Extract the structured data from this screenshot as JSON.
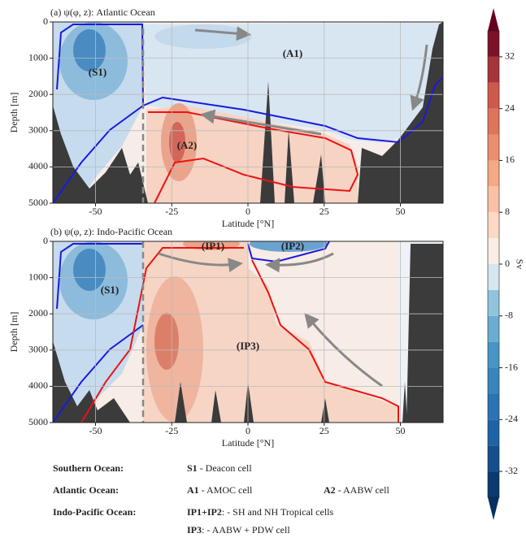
{
  "chart_data": [
    {
      "type": "contour",
      "title": "(a) ψ(φ, z): Atlantic Ocean",
      "xlabel": "Latitude [°N]",
      "ylabel": "Depth [m]",
      "xlim": [
        -64,
        64
      ],
      "ylim": [
        5000,
        0
      ],
      "xticks": [
        -50,
        -25,
        0,
        25,
        50
      ],
      "yticks": [
        0,
        1000,
        2000,
        3000,
        4000,
        5000
      ],
      "grid": true,
      "annotations": [
        "(S1)",
        "(A1)",
        "(A2)"
      ]
    },
    {
      "type": "contour",
      "title": "(b) ψ(φ, z): Indo-Pacific Ocean",
      "xlabel": "Latitude [°N]",
      "ylabel": "Depth [m]",
      "xlim": [
        -64,
        64
      ],
      "ylim": [
        5000,
        0
      ],
      "xticks": [
        -50,
        -25,
        0,
        25,
        50
      ],
      "yticks": [
        0,
        1000,
        2000,
        3000,
        4000,
        5000
      ],
      "grid": true,
      "annotations": [
        "(IP1)",
        "(IP2)",
        "(S1)",
        "(IP3)"
      ]
    }
  ],
  "colorbar": {
    "label": "Sv",
    "lim": [
      -36,
      36
    ],
    "ticks": [
      -32,
      -24,
      -16,
      -8,
      0,
      8,
      16,
      24,
      32
    ]
  },
  "legend": [
    {
      "region": "Southern Ocean:",
      "items": [
        {
          "key": "S1",
          "text": " - Deacon cell"
        }
      ]
    },
    {
      "region": "Atlantic Ocean:",
      "items": [
        {
          "key": "A1",
          "text": " - AMOC cell"
        },
        {
          "key": "A2",
          "text": " - AABW cell"
        }
      ]
    },
    {
      "region": "Indo-Pacific Ocean:",
      "items": [
        {
          "key": "IP1+IP2",
          "text": ": - SH and NH Tropical cells"
        }
      ]
    },
    {
      "items": [
        {
          "key": "IP3",
          "text": ": - AABW + PDW cell"
        }
      ]
    }
  ]
}
